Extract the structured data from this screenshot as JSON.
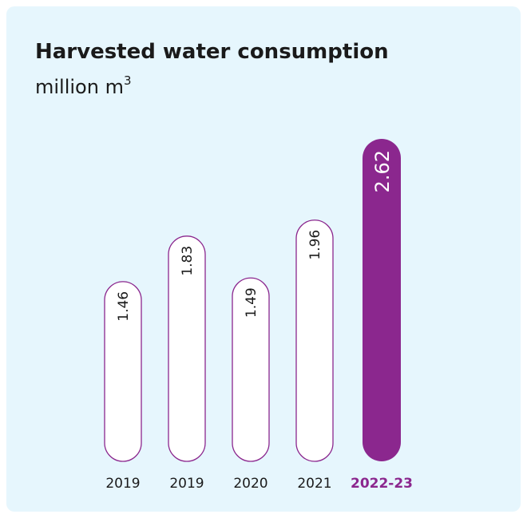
{
  "colors": {
    "background": "#e6f6fd",
    "bar_outline": "#8b278e",
    "bar_fill": "#ffffff",
    "highlight_fill": "#8b278e",
    "text": "#1a1a1a",
    "highlight_text": "#8b278e"
  },
  "chart_data": {
    "type": "bar",
    "title": "Harvested water consumption",
    "unit": "million m",
    "unit_superscript": "3",
    "categories": [
      "2019",
      "2019",
      "2020",
      "2021",
      "2022-23"
    ],
    "values": [
      1.46,
      1.83,
      1.49,
      1.96,
      2.62
    ],
    "value_labels": [
      "1.46",
      "1.83",
      "1.49",
      "1.96",
      "2.62"
    ],
    "highlight_index": 4,
    "grid": false,
    "legend": "none",
    "ylim": [
      0,
      2.62
    ]
  }
}
